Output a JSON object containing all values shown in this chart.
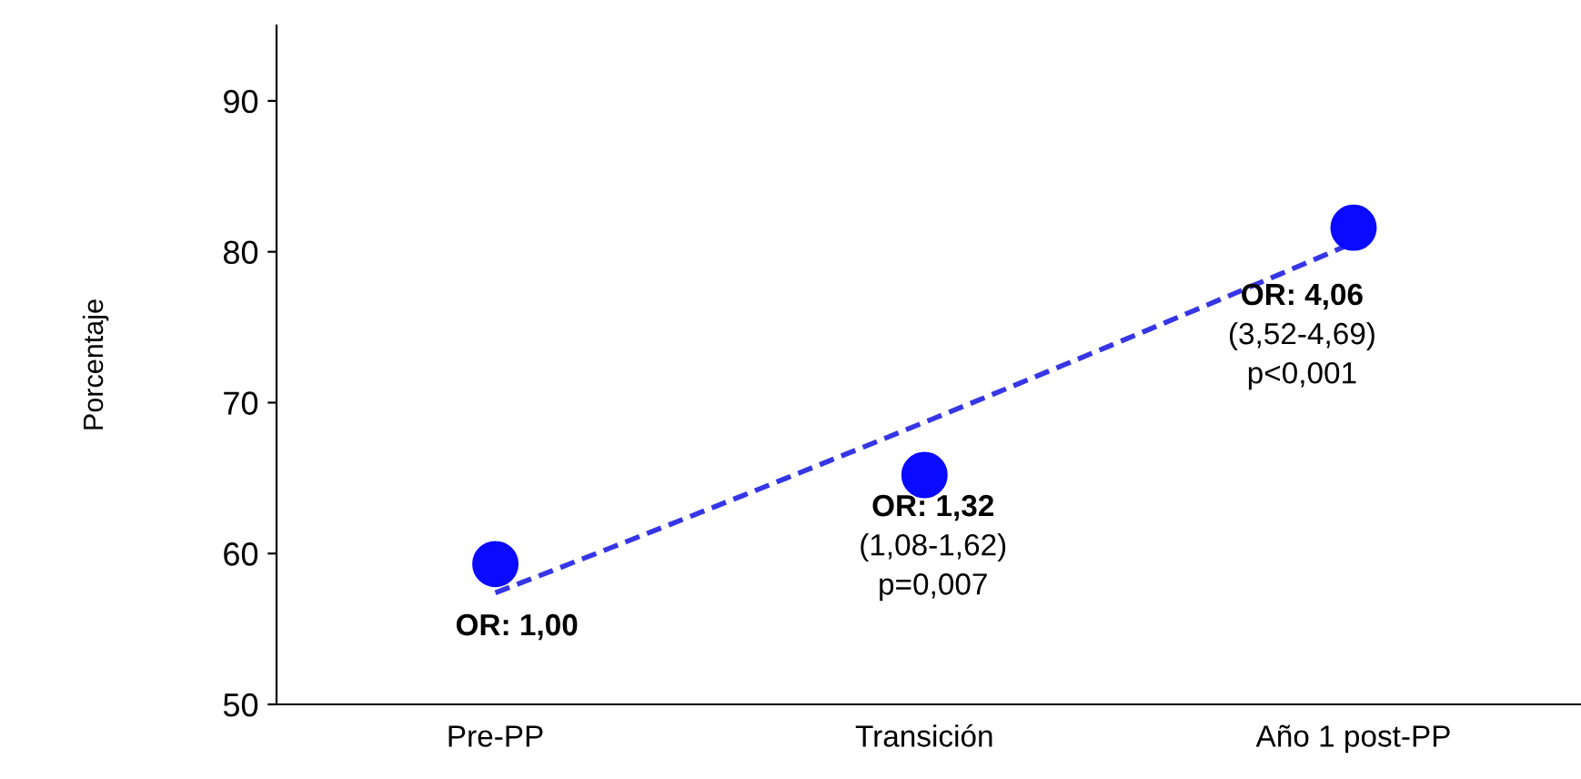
{
  "chart_data": {
    "type": "scatter",
    "ylabel": "Porcentaje",
    "categories": [
      "Pre-PP",
      "Transición",
      "Año 1 post-PP"
    ],
    "ylim": [
      50,
      95
    ],
    "yticks": [
      50,
      60,
      70,
      80,
      90
    ],
    "grid": false,
    "legend": false,
    "series": [
      {
        "color": "#0a0aff",
        "marker": "circle",
        "values": [
          59.3,
          65.2,
          81.6
        ]
      },
      {
        "type": "line",
        "color": "#3636e6",
        "line_style": "dashed",
        "marker": "none",
        "values": [
          57.4,
          68.7,
          80.6
        ]
      }
    ],
    "annotations": [
      {
        "text": "OR: 1,00",
        "x": "Pre-PP",
        "y": 59.3
      },
      {
        "text": "OR: 1,32\n(1,08-1,62)\np=0,007",
        "x": "Transición",
        "y": 65.2
      },
      {
        "text": "OR: 4,06\n(3,52-4,69)\np<0,001",
        "x": "Año 1 post-PP",
        "y": 81.6
      }
    ]
  }
}
